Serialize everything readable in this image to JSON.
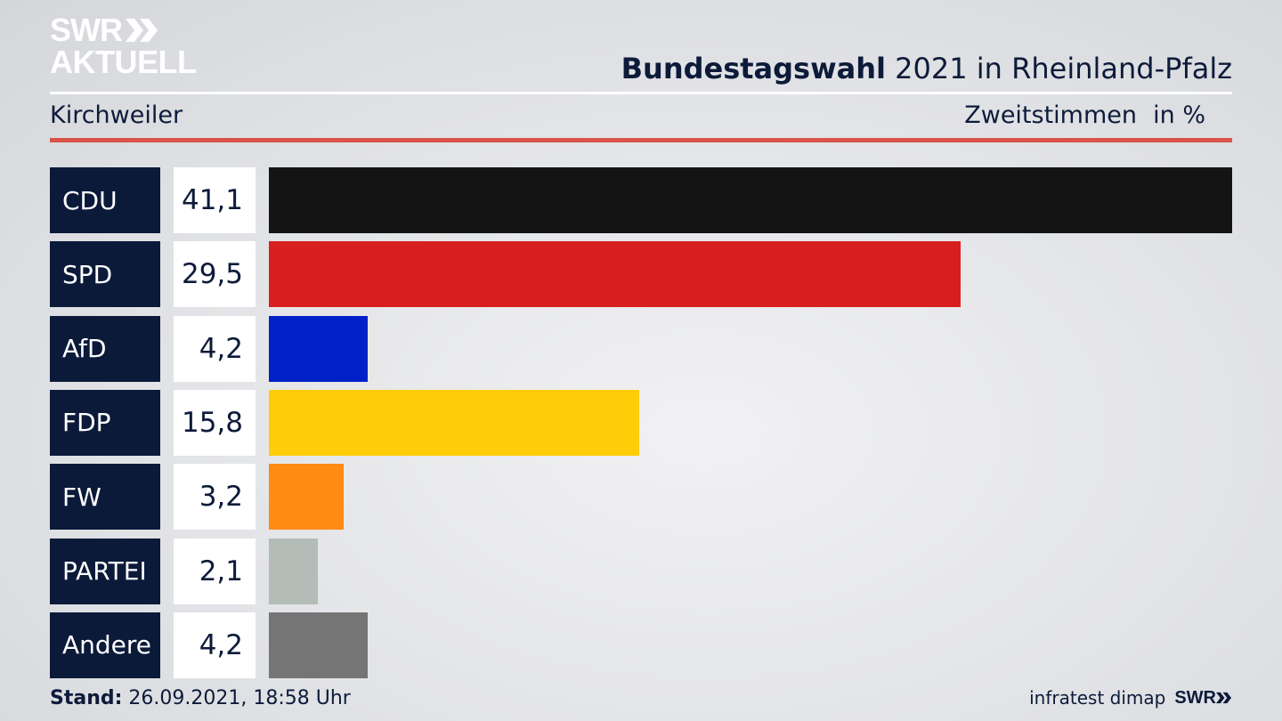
{
  "logo": {
    "line1": "SWR",
    "line2": "AKTUELL"
  },
  "header": {
    "title_bold": "Bundestagswahl",
    "title_rest": " 2021 in Rheinland-Pfalz",
    "region": "Kirchweiler",
    "vote_type": "Zweitstimmen",
    "unit": "in %"
  },
  "chart_data": {
    "type": "bar",
    "orientation": "horizontal",
    "categories": [
      "CDU",
      "SPD",
      "AfD",
      "FDP",
      "FW",
      "PARTEI",
      "Andere"
    ],
    "values": [
      41.1,
      29.5,
      4.2,
      15.8,
      3.2,
      2.1,
      4.2
    ],
    "value_labels": [
      "41,1",
      "29,5",
      "4,2",
      "15,8",
      "3,2",
      "2,1",
      "4,2"
    ],
    "colors": [
      "#141414",
      "#d81f1f",
      "#0020c8",
      "#ffcc0a",
      "#ff8a14",
      "#b3bcb6",
      "#757575"
    ],
    "xlim": [
      0,
      41.1
    ]
  },
  "footer": {
    "stand_label": "Stand:",
    "stand_value": " 26.09.2021, 18:58 Uhr",
    "source": "infratest dimap",
    "brand": "SWR"
  }
}
